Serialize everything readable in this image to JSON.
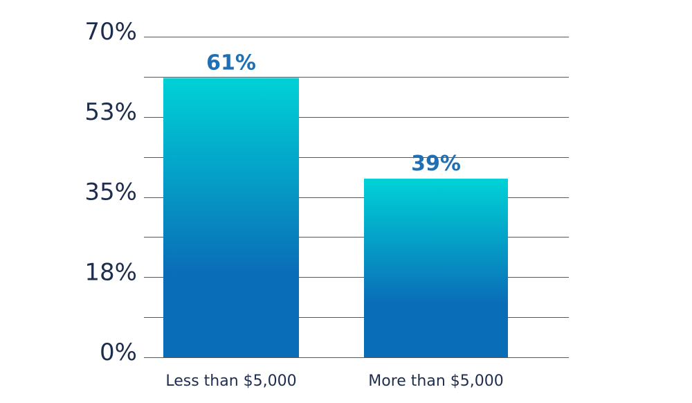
{
  "chart_data": {
    "type": "bar",
    "categories": [
      "Less than $5,000",
      "More than $5,000"
    ],
    "values": [
      61,
      39
    ],
    "value_labels": [
      "61%",
      "39%"
    ],
    "title": "",
    "xlabel": "",
    "ylabel": "",
    "ylim": [
      0,
      70
    ],
    "yticks": [
      {
        "value": 0,
        "label": "0%"
      },
      {
        "value": 17.5,
        "label": "18%"
      },
      {
        "value": 35,
        "label": "35%"
      },
      {
        "value": 52.5,
        "label": "53%"
      },
      {
        "value": 70,
        "label": "70%"
      }
    ],
    "gridlines": [
      0,
      8.75,
      17.5,
      26.25,
      35,
      43.75,
      52.5,
      61.25,
      70
    ],
    "grid": true,
    "legend": "none"
  },
  "colors": {
    "bar_top": "#00d2d6",
    "bar_bottom": "#0a6db8",
    "data_label": "#1f6fb5",
    "axis_text": "#1f2d4d",
    "grid": "#555555"
  }
}
